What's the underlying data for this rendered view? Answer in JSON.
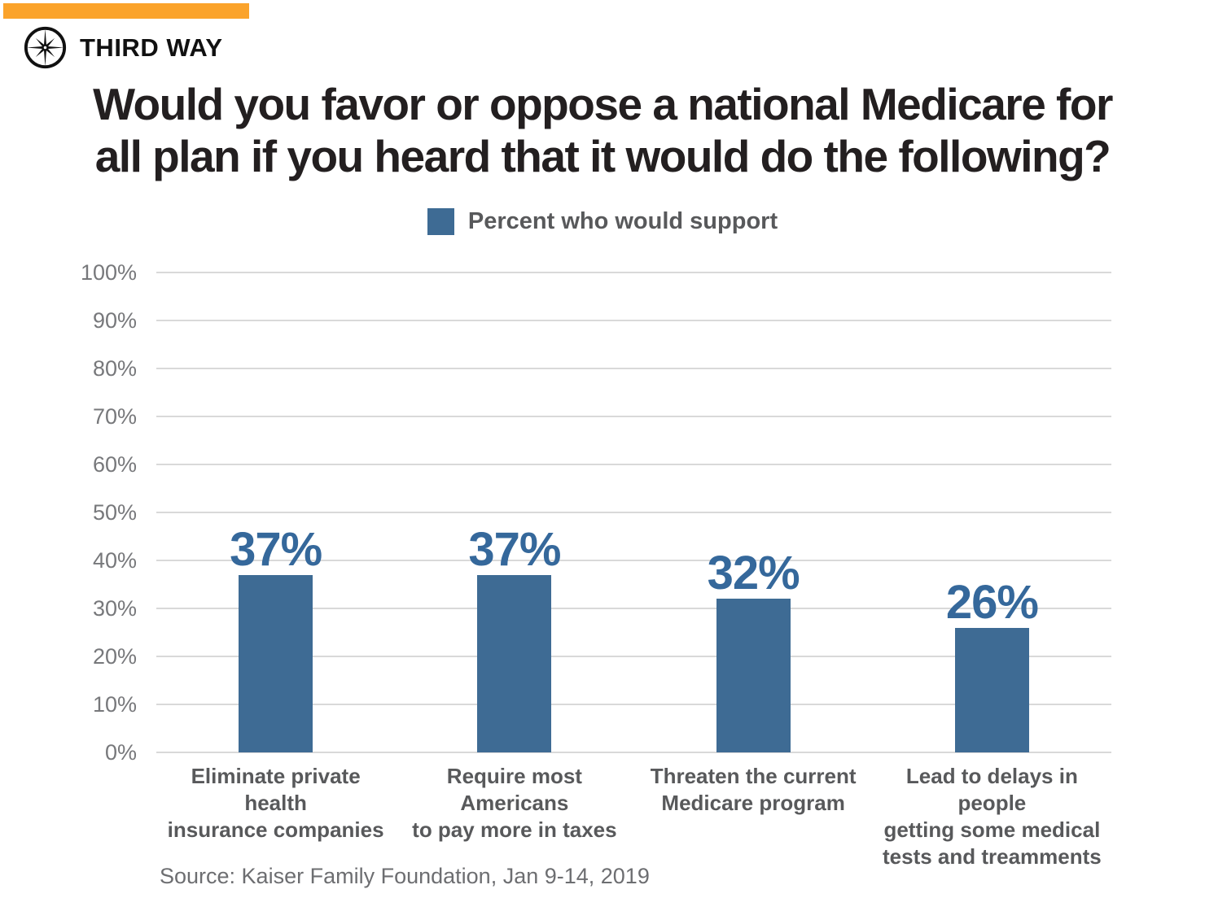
{
  "brand": {
    "name": "THIRD WAY",
    "accent_color": "#FBA32B",
    "logo_icon": "compass-icon",
    "logo_color": "#111111"
  },
  "title_lines": [
    "Would you favor or oppose a national Medicare for",
    "all plan if you heard that it would do the following?"
  ],
  "legend": {
    "label": "Percent who would support",
    "swatch_color": "#3E6B94"
  },
  "chart_data": {
    "type": "bar",
    "title": "Would you favor or oppose a national Medicare for all plan if you heard that it would do the following?",
    "categories": [
      "Eliminate private health insurance companies",
      "Require most Americans to pay more in taxes",
      "Threaten the current Medicare program",
      "Lead to delays in people getting some medical tests and treamments"
    ],
    "category_label_lines": [
      [
        "Eliminate private health",
        "insurance companies"
      ],
      [
        "Require most Americans",
        "to pay more in taxes"
      ],
      [
        "Threaten the current",
        "Medicare program"
      ],
      [
        "Lead to delays in people",
        "getting some medical",
        "tests and treamments"
      ]
    ],
    "values": [
      37,
      37,
      32,
      26
    ],
    "data_labels": [
      "37%",
      "37%",
      "32%",
      "26%"
    ],
    "series_name": "Percent who would support",
    "xlabel": "",
    "ylabel": "",
    "ylim": [
      0,
      100
    ],
    "ytick_step": 10,
    "ytick_labels": [
      "0%",
      "10%",
      "20%",
      "30%",
      "40%",
      "50%",
      "60%",
      "70%",
      "80%",
      "90%",
      "100%"
    ],
    "grid": true,
    "gridline_color": "#D9D9D9",
    "legend_position": "top-center",
    "bar_color": "#3E6B94",
    "data_label_color": "#35689B"
  },
  "source": "Source: Kaiser Family Foundation, Jan 9-14, 2019"
}
